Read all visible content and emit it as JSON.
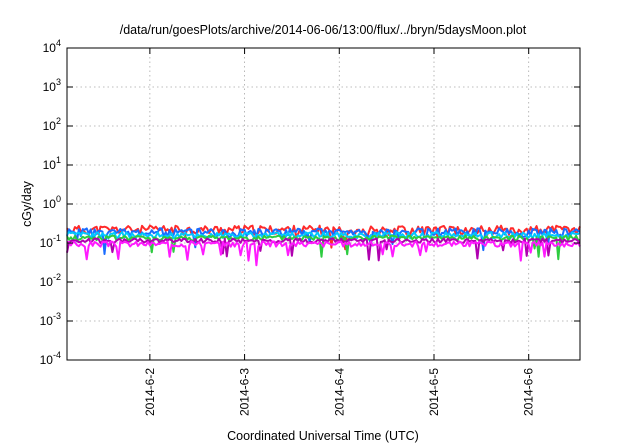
{
  "chart_data": {
    "type": "line",
    "title": "/data/run/goesPlots/archive/2014-06-06/13:00/flux/../bryn/5daysMoon.plot",
    "xlabel": "Coordinated Universal Time (UTC)",
    "ylabel": "cGy/day",
    "y_scale": "log",
    "ylim": [
      0.0001,
      10000
    ],
    "y_ticks": [
      {
        "value": 0.0001,
        "base": "10",
        "exp": "-4"
      },
      {
        "value": 0.001,
        "base": "10",
        "exp": "-3"
      },
      {
        "value": 0.01,
        "base": "10",
        "exp": "-2"
      },
      {
        "value": 0.1,
        "base": "10",
        "exp": "-1"
      },
      {
        "value": 1,
        "base": "10",
        "exp": "0"
      },
      {
        "value": 10,
        "base": "10",
        "exp": "1"
      },
      {
        "value": 100,
        "base": "10",
        "exp": "2"
      },
      {
        "value": 1000,
        "base": "10",
        "exp": "3"
      },
      {
        "value": 10000,
        "base": "10",
        "exp": "4"
      }
    ],
    "xlim": [
      "2014-06-01T03:00",
      "2014-06-06T13:00"
    ],
    "x_ticks": [
      {
        "value": "2014-06-02T00:00",
        "label": "2014-6-2"
      },
      {
        "value": "2014-06-03T00:00",
        "label": "2014-6-3"
      },
      {
        "value": "2014-06-04T00:00",
        "label": "2014-6-4"
      },
      {
        "value": "2014-06-05T00:00",
        "label": "2014-6-5"
      },
      {
        "value": "2014-06-06T00:00",
        "label": "2014-6-6"
      }
    ],
    "grid": true,
    "legend": "none",
    "series": [
      {
        "color": "#ff2a2a",
        "level": 0.22,
        "spread": 0.06,
        "dip_prob": 0.03,
        "seed": 11
      },
      {
        "color": "#1a6cff",
        "level": 0.19,
        "spread": 0.05,
        "dip_prob": 0.03,
        "seed": 23
      },
      {
        "color": "#00c8ff",
        "level": 0.16,
        "spread": 0.03,
        "dip_prob": 0.02,
        "seed": 37
      },
      {
        "color": "#2ecc40",
        "level": 0.135,
        "spread": 0.02,
        "dip_prob": 0.02,
        "seed": 41
      },
      {
        "color": "#b000b0",
        "level": 0.115,
        "spread": 0.015,
        "dip_prob": 0.03,
        "seed": 53
      },
      {
        "color": "#ff1aff",
        "level": 0.095,
        "spread": 0.015,
        "dip_prob": 0.05,
        "seed": 67
      }
    ]
  }
}
